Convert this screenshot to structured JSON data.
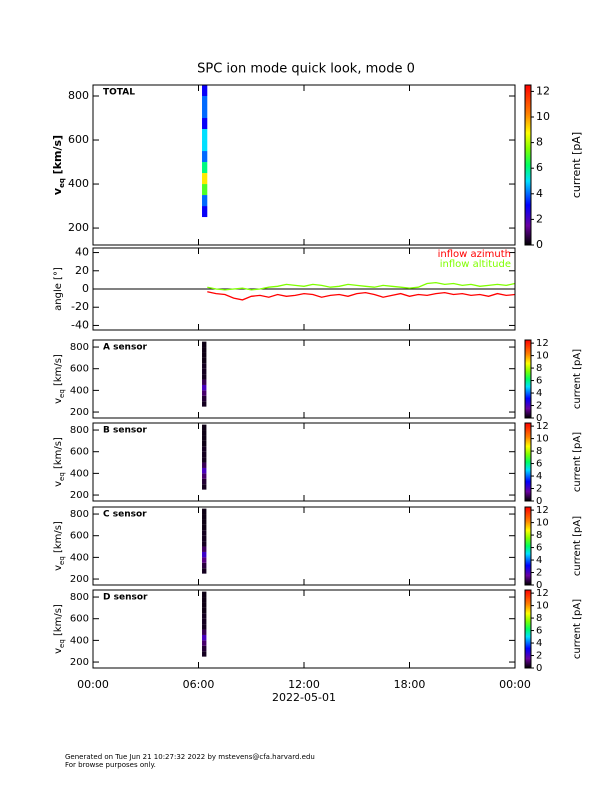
{
  "title": "SPC ion mode quick look, mode 0",
  "footer": [
    "Generated on Tue Jun 21 10:27:32 2022 by mstevens@cfa.harvard.edu",
    "For browse purposes only."
  ],
  "chart_data": [
    {
      "type": "heatmap",
      "label": "TOTAL",
      "ylabel": {
        "main": "v",
        "sub": "eq",
        "unit": " [km/s]"
      },
      "zlabel": "current [pA]",
      "xlim": [
        0,
        24
      ],
      "ylim": [
        123,
        850
      ],
      "yticks": [
        200,
        400,
        600,
        800
      ],
      "zlim": [
        0,
        12.5
      ],
      "zticks": [
        0,
        2,
        4,
        6,
        8,
        10,
        12
      ],
      "colormap": "rainbow",
      "x_edges": [
        6.2,
        6.5
      ],
      "y_edges": [
        250,
        300,
        350,
        400,
        450,
        500,
        550,
        600,
        650,
        700,
        750,
        800,
        850
      ],
      "values": [
        3,
        4,
        7,
        9,
        6,
        4,
        5,
        5,
        3,
        4,
        4,
        3
      ]
    },
    {
      "type": "line",
      "ylabel": "angle [°]",
      "xlim": [
        0,
        24
      ],
      "ylim": [
        -45,
        45
      ],
      "yticks": [
        -40,
        -20,
        0,
        20,
        40
      ],
      "zero_line": true,
      "legend": "upper right",
      "x": [
        6.5,
        7,
        7.5,
        8,
        8.5,
        9,
        9.5,
        10,
        10.5,
        11,
        11.5,
        12,
        12.5,
        13,
        13.5,
        14,
        14.5,
        15,
        15.5,
        16,
        16.5,
        17,
        17.5,
        18,
        18.5,
        19,
        19.5,
        20,
        20.5,
        21,
        21.5,
        22,
        22.5,
        23,
        23.5,
        24
      ],
      "series": [
        {
          "name": "inflow azimuth",
          "color": "#ff0000",
          "values": [
            -3,
            -5,
            -6,
            -10,
            -12,
            -8,
            -7,
            -9,
            -6,
            -8,
            -7,
            -5,
            -6,
            -9,
            -7,
            -6,
            -8,
            -5,
            -4,
            -6,
            -9,
            -7,
            -5,
            -8,
            -6,
            -7,
            -5,
            -4,
            -6,
            -5,
            -7,
            -6,
            -8,
            -5,
            -7,
            -6
          ]
        },
        {
          "name": "inflow altitude",
          "color": "#80ff00",
          "values": [
            2,
            0,
            -1,
            0,
            1,
            -1,
            0,
            2,
            3,
            5,
            4,
            3,
            5,
            4,
            2,
            3,
            5,
            4,
            3,
            2,
            4,
            3,
            2,
            1,
            2,
            6,
            7,
            5,
            6,
            4,
            5,
            3,
            4,
            5,
            4,
            6
          ]
        }
      ]
    },
    {
      "type": "heatmap",
      "label": "A sensor",
      "ylabel": {
        "main": "v",
        "sub": "eq",
        "unit": " [km/s]"
      },
      "zlabel": "current [pA]",
      "xlim": [
        0,
        24
      ],
      "ylim": [
        145,
        865
      ],
      "yticks": [
        200,
        400,
        600,
        800
      ],
      "zlim": [
        0,
        12.5
      ],
      "zticks": [
        0,
        2,
        4,
        6,
        8,
        10,
        12
      ],
      "colormap": "rainbow",
      "x_edges": [
        6.2,
        6.45
      ],
      "y_edges": [
        250,
        300,
        350,
        400,
        450,
        500,
        550,
        600,
        650,
        700,
        750,
        800,
        850
      ],
      "values": [
        0.3,
        0.5,
        1,
        2,
        0.8,
        0.3,
        0.3,
        0.3,
        0.2,
        0.2,
        0.2,
        0.2
      ]
    },
    {
      "type": "heatmap",
      "label": "B sensor",
      "ylabel": {
        "main": "v",
        "sub": "eq",
        "unit": " [km/s]"
      },
      "zlabel": "current [pA]",
      "xlim": [
        0,
        24
      ],
      "ylim": [
        145,
        865
      ],
      "yticks": [
        200,
        400,
        600,
        800
      ],
      "zlim": [
        0,
        12.5
      ],
      "zticks": [
        0,
        2,
        4,
        6,
        8,
        10,
        12
      ],
      "colormap": "rainbow",
      "x_edges": [
        6.2,
        6.45
      ],
      "y_edges": [
        250,
        300,
        350,
        400,
        450,
        500,
        550,
        600,
        650,
        700,
        750,
        800,
        850
      ],
      "values": [
        0.3,
        0.5,
        1,
        2,
        0.8,
        0.3,
        0.3,
        0.3,
        0.2,
        0.2,
        0.2,
        0.2
      ]
    },
    {
      "type": "heatmap",
      "label": "C sensor",
      "ylabel": {
        "main": "v",
        "sub": "eq",
        "unit": " [km/s]"
      },
      "zlabel": "current [pA]",
      "xlim": [
        0,
        24
      ],
      "ylim": [
        145,
        865
      ],
      "yticks": [
        200,
        400,
        600,
        800
      ],
      "zlim": [
        0,
        12.5
      ],
      "zticks": [
        0,
        2,
        4,
        6,
        8,
        10,
        12
      ],
      "colormap": "rainbow",
      "x_edges": [
        6.2,
        6.45
      ],
      "y_edges": [
        250,
        300,
        350,
        400,
        450,
        500,
        550,
        600,
        650,
        700,
        750,
        800,
        850
      ],
      "values": [
        0.3,
        0.6,
        1.2,
        2.2,
        0.9,
        0.3,
        0.3,
        0.3,
        0.2,
        0.2,
        0.2,
        0.2
      ]
    },
    {
      "type": "heatmap",
      "label": "D sensor",
      "ylabel": {
        "main": "v",
        "sub": "eq",
        "unit": " [km/s]"
      },
      "zlabel": "current [pA]",
      "xlim": [
        0,
        24
      ],
      "ylim": [
        145,
        865
      ],
      "yticks": [
        200,
        400,
        600,
        800
      ],
      "zlim": [
        0,
        12.5
      ],
      "zticks": [
        0,
        2,
        4,
        6,
        8,
        10,
        12
      ],
      "colormap": "rainbow",
      "x_edges": [
        6.2,
        6.45
      ],
      "y_edges": [
        250,
        300,
        350,
        400,
        450,
        500,
        550,
        600,
        650,
        700,
        750,
        800,
        850
      ],
      "values": [
        0.3,
        0.5,
        1,
        2,
        0.8,
        0.3,
        0.3,
        0.3,
        0.2,
        0.2,
        0.2,
        0.2
      ],
      "xticks": [
        {
          "value": 0,
          "label": "00:00"
        },
        {
          "value": 6,
          "label": "06:00"
        },
        {
          "value": 12,
          "label": "12:00"
        },
        {
          "value": 18,
          "label": "18:00"
        },
        {
          "value": 24,
          "label": "00:00"
        }
      ],
      "xlabel": "2022-05-01"
    }
  ]
}
